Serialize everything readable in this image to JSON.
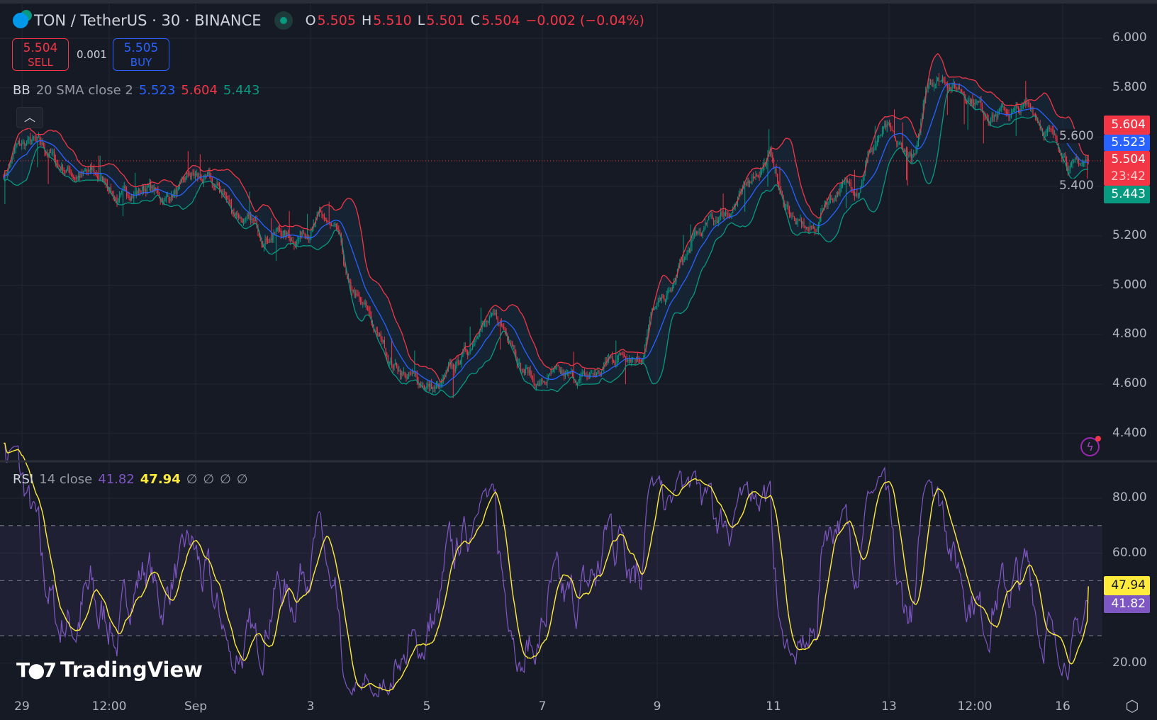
{
  "header": {
    "symbol": "TON / TetherUS · 30 · BINANCE",
    "ohlc": {
      "o_label": "O",
      "o": "5.505",
      "h_label": "H",
      "h": "5.510",
      "l_label": "L",
      "l": "5.501",
      "c_label": "C",
      "c": "5.504",
      "change": "−0.002 (−0.04%)"
    }
  },
  "trade": {
    "sell_price": "5.504",
    "sell_label": "SELL",
    "spread": "0.001",
    "buy_price": "5.505",
    "buy_label": "BUY"
  },
  "bb_legend": {
    "name": "BB",
    "params": "20 SMA close 2",
    "basis": "5.523",
    "upper": "5.604",
    "lower": "5.443"
  },
  "rsi_legend": {
    "name": "RSI",
    "params": "14 close",
    "rsi": "41.82",
    "rsi_ma": "47.94",
    "empty1": "∅",
    "empty2": "∅",
    "empty3": "∅",
    "empty4": "∅"
  },
  "price_badges": {
    "upper": "5.604",
    "basis": "5.523",
    "last": "5.504",
    "countdown": "23:42",
    "lower": "5.443"
  },
  "rsi_badges": {
    "rsi_ma": "47.94",
    "rsi": "41.82"
  },
  "logo": "TradingView",
  "colors": {
    "up": "#089981",
    "down": "#f23645",
    "basis": "#2962ff",
    "upper": "#f23645",
    "lower": "#089981",
    "rsi": "#7e57c2",
    "rsi_ma": "#ffeb3b"
  },
  "chart_data": [
    {
      "type": "candlestick",
      "title": "TON / TetherUS · 30 · BINANCE",
      "price_axis": {
        "ticks": [
          "6.000",
          "5.800",
          "5.600",
          "5.400",
          "5.200",
          "5.000",
          "4.800",
          "4.600",
          "4.400"
        ],
        "ylim": [
          4.3,
          6.05
        ]
      },
      "time_axis": {
        "ticks": [
          "29",
          "12:00",
          "Sep",
          "3",
          "5",
          "7",
          "9",
          "11",
          "13",
          "12:00",
          "16"
        ]
      },
      "candle_interval": "30m",
      "close_path": {
        "start": "Aug 28 18:00",
        "step": "6h",
        "values": [
          5.45,
          5.56,
          5.58,
          5.54,
          5.48,
          5.45,
          5.45,
          5.42,
          5.35,
          5.38,
          5.4,
          5.35,
          5.38,
          5.44,
          5.42,
          5.38,
          5.3,
          5.25,
          5.2,
          5.22,
          5.19,
          5.23,
          5.27,
          5.2,
          4.97,
          4.9,
          4.78,
          4.68,
          4.63,
          4.6,
          4.58,
          4.65,
          4.73,
          4.85,
          4.85,
          4.8,
          4.66,
          4.6,
          4.63,
          4.62,
          4.62,
          4.64,
          4.7,
          4.73,
          4.72,
          4.9,
          4.96,
          5.1,
          5.2,
          5.26,
          5.3,
          5.36,
          5.46,
          5.52,
          5.33,
          5.24,
          5.22,
          5.35,
          5.4,
          5.4,
          5.55,
          5.62,
          5.55,
          5.52,
          5.84,
          5.84,
          5.8,
          5.76,
          5.7,
          5.7,
          5.7,
          5.72,
          5.64,
          5.56,
          5.48,
          5.504
        ]
      },
      "overlays": [
        "Bollinger Bands 20 SMA close 2"
      ],
      "last_price": 5.504,
      "grid": true
    },
    {
      "type": "line",
      "title": "RSI 14 close",
      "y_axis": {
        "ticks": [
          "80.00",
          "60.00",
          "20.00"
        ],
        "ylim": [
          15,
          88
        ]
      },
      "bands": [
        70,
        50,
        30
      ],
      "last_values": {
        "rsi": 41.82,
        "rsi_ma": 47.94
      }
    }
  ]
}
